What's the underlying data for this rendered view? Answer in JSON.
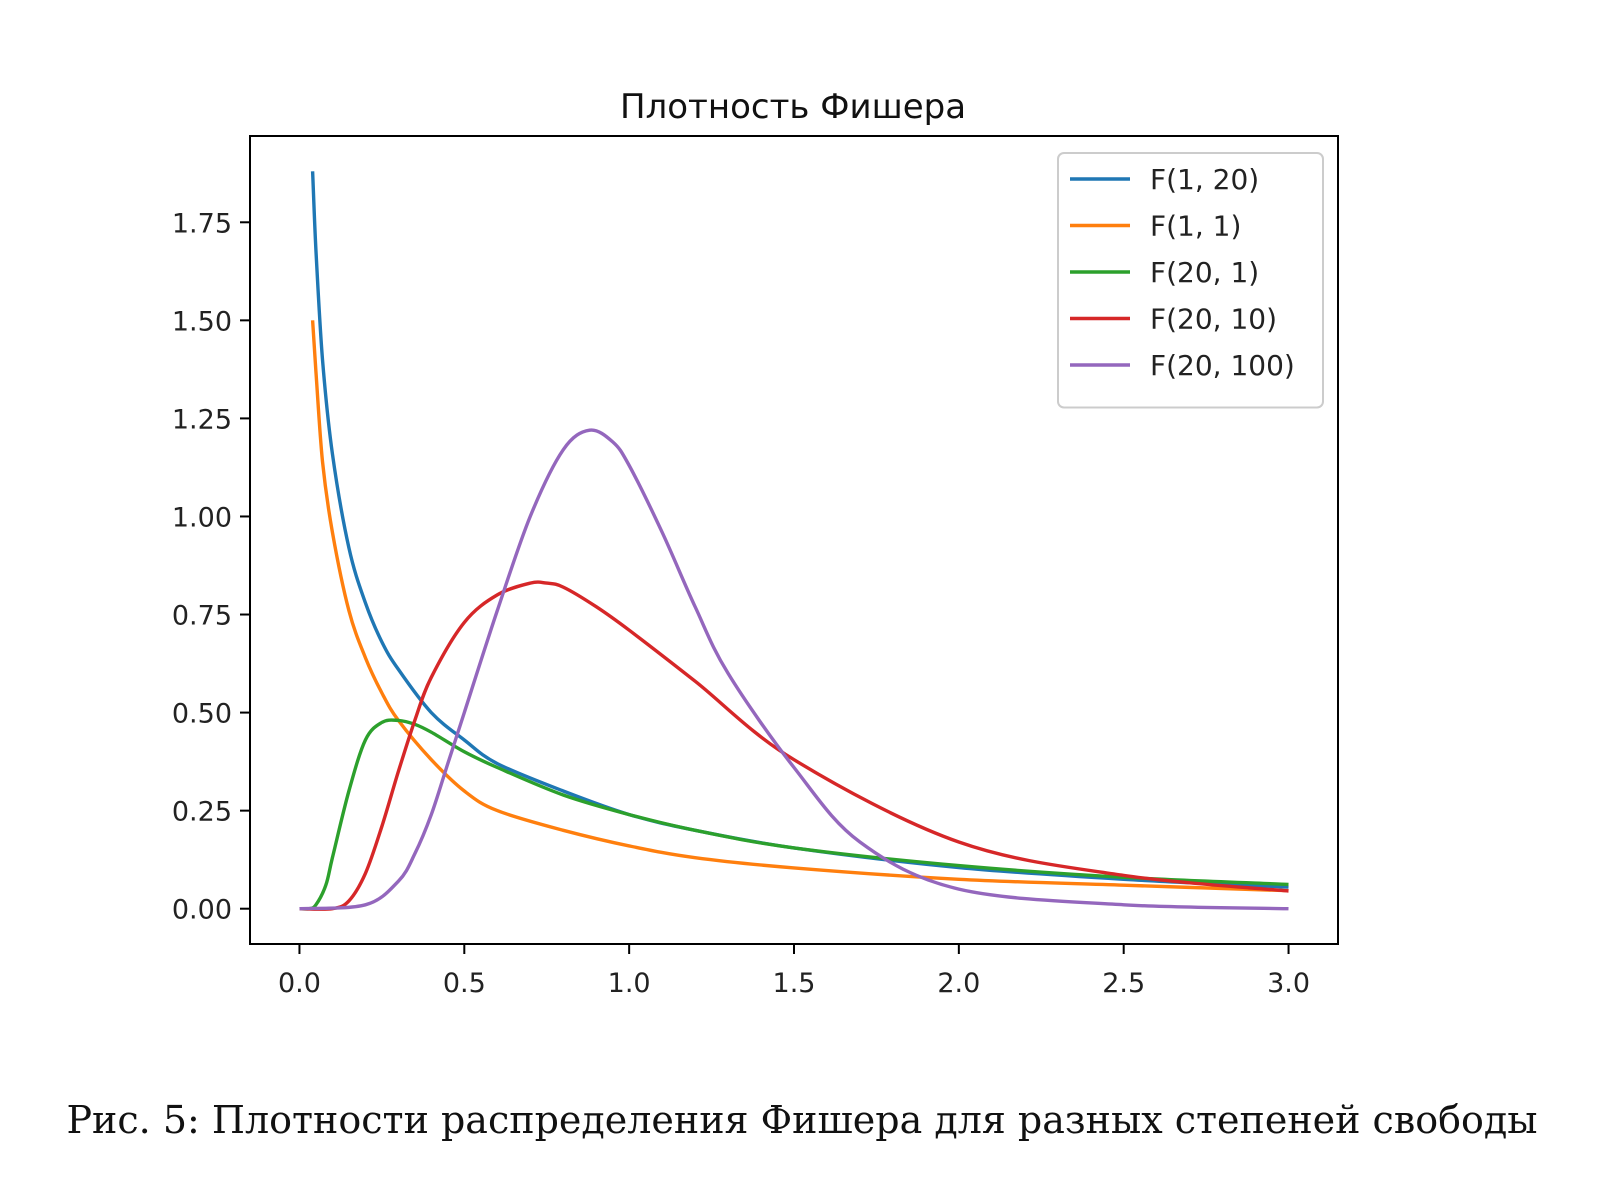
{
  "chart_data": {
    "type": "line",
    "title": "Плотность Фишера",
    "xlabel": "",
    "ylabel": "",
    "xlim": [
      -0.15,
      3.15
    ],
    "ylim": [
      -0.09,
      1.97
    ],
    "x_ticks": [
      0.0,
      0.5,
      1.0,
      1.5,
      2.0,
      2.5,
      3.0
    ],
    "x_tick_labels": [
      "0.0",
      "0.5",
      "1.0",
      "1.5",
      "2.0",
      "2.5",
      "3.0"
    ],
    "y_ticks": [
      0.0,
      0.25,
      0.5,
      0.75,
      1.0,
      1.25,
      1.5,
      1.75
    ],
    "y_tick_labels": [
      "0.00",
      "0.25",
      "0.50",
      "0.75",
      "1.00",
      "1.25",
      "1.50",
      "1.75"
    ],
    "grid": false,
    "legend": "top-right",
    "series": [
      {
        "name": "F(1, 20)",
        "color": "#1f77b4",
        "x": [
          0.04,
          0.05,
          0.07,
          0.1,
          0.15,
          0.2,
          0.25,
          0.3,
          0.4,
          0.5,
          0.6,
          0.8,
          1.0,
          1.2,
          1.5,
          2.0,
          2.5,
          3.0
        ],
        "y": [
          1.88,
          1.68,
          1.4,
          1.16,
          0.92,
          0.78,
          0.68,
          0.61,
          0.5,
          0.43,
          0.37,
          0.3,
          0.24,
          0.2,
          0.155,
          0.105,
          0.075,
          0.055
        ]
      },
      {
        "name": "F(1, 1)",
        "color": "#ff7f0e",
        "x": [
          0.04,
          0.05,
          0.07,
          0.1,
          0.15,
          0.2,
          0.25,
          0.3,
          0.4,
          0.5,
          0.6,
          0.8,
          1.0,
          1.2,
          1.5,
          2.0,
          2.5,
          3.0
        ],
        "y": [
          1.5,
          1.37,
          1.14,
          0.96,
          0.76,
          0.64,
          0.55,
          0.48,
          0.38,
          0.3,
          0.25,
          0.2,
          0.16,
          0.13,
          0.104,
          0.075,
          0.06,
          0.046
        ]
      },
      {
        "name": "F(20, 1)",
        "color": "#2ca02c",
        "x": [
          0.0,
          0.03,
          0.05,
          0.08,
          0.1,
          0.15,
          0.2,
          0.25,
          0.3,
          0.35,
          0.4,
          0.5,
          0.6,
          0.8,
          1.0,
          1.2,
          1.5,
          2.0,
          2.5,
          3.0
        ],
        "y": [
          0.0,
          0.0,
          0.01,
          0.06,
          0.13,
          0.3,
          0.43,
          0.475,
          0.48,
          0.47,
          0.45,
          0.4,
          0.36,
          0.29,
          0.24,
          0.2,
          0.155,
          0.11,
          0.08,
          0.062
        ]
      },
      {
        "name": "F(20, 10)",
        "color": "#d62728",
        "x": [
          0.0,
          0.1,
          0.15,
          0.2,
          0.25,
          0.3,
          0.35,
          0.4,
          0.5,
          0.6,
          0.7,
          0.75,
          0.8,
          0.9,
          1.0,
          1.2,
          1.5,
          2.0,
          2.5,
          3.0
        ],
        "y": [
          0.0,
          0.0,
          0.02,
          0.09,
          0.21,
          0.35,
          0.48,
          0.59,
          0.73,
          0.8,
          0.83,
          0.83,
          0.82,
          0.77,
          0.71,
          0.58,
          0.38,
          0.17,
          0.085,
          0.045
        ]
      },
      {
        "name": "F(20, 100)",
        "color": "#9467bd",
        "x": [
          0.0,
          0.2,
          0.3,
          0.35,
          0.4,
          0.45,
          0.5,
          0.6,
          0.7,
          0.8,
          0.88,
          0.95,
          1.0,
          1.1,
          1.2,
          1.3,
          1.5,
          1.7,
          2.0,
          2.5,
          3.0
        ],
        "y": [
          0.0,
          0.01,
          0.07,
          0.14,
          0.24,
          0.37,
          0.5,
          0.76,
          1.0,
          1.17,
          1.22,
          1.19,
          1.13,
          0.96,
          0.77,
          0.6,
          0.36,
          0.17,
          0.05,
          0.01,
          0.0
        ]
      }
    ]
  },
  "caption": "Рис. 5: Плотности распределения Фишера для разных степеней свободы"
}
